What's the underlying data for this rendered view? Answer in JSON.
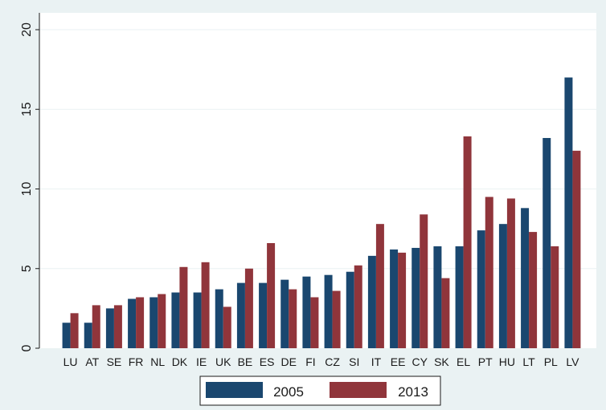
{
  "chart_data": {
    "type": "bar",
    "title": "",
    "xlabel": "",
    "ylabel": "",
    "ylim": [
      0,
      20
    ],
    "yticks": [
      0,
      5,
      10,
      15,
      20
    ],
    "grid": true,
    "legend_position": "bottom",
    "categories": [
      "LU",
      "AT",
      "SE",
      "FR",
      "NL",
      "DK",
      "IE",
      "UK",
      "BE",
      "ES",
      "DE",
      "FI",
      "CZ",
      "SI",
      "IT",
      "EE",
      "CY",
      "SK",
      "EL",
      "PT",
      "HU",
      "LT",
      "PL",
      "LV"
    ],
    "series": [
      {
        "name": "2005",
        "color": "#1a476f",
        "values": [
          1.6,
          1.6,
          2.5,
          3.1,
          3.2,
          3.5,
          3.5,
          3.7,
          4.1,
          4.1,
          4.3,
          4.5,
          4.6,
          4.8,
          5.8,
          6.2,
          6.3,
          6.4,
          6.4,
          7.4,
          7.8,
          8.8,
          13.2,
          17.0
        ]
      },
      {
        "name": "2013",
        "color": "#90353b",
        "values": [
          2.2,
          2.7,
          2.7,
          3.2,
          3.4,
          5.1,
          5.4,
          2.6,
          5.0,
          6.6,
          3.7,
          3.2,
          3.6,
          5.2,
          7.8,
          6.0,
          8.4,
          4.4,
          13.3,
          9.5,
          9.4,
          7.3,
          6.4,
          12.4
        ]
      }
    ]
  }
}
